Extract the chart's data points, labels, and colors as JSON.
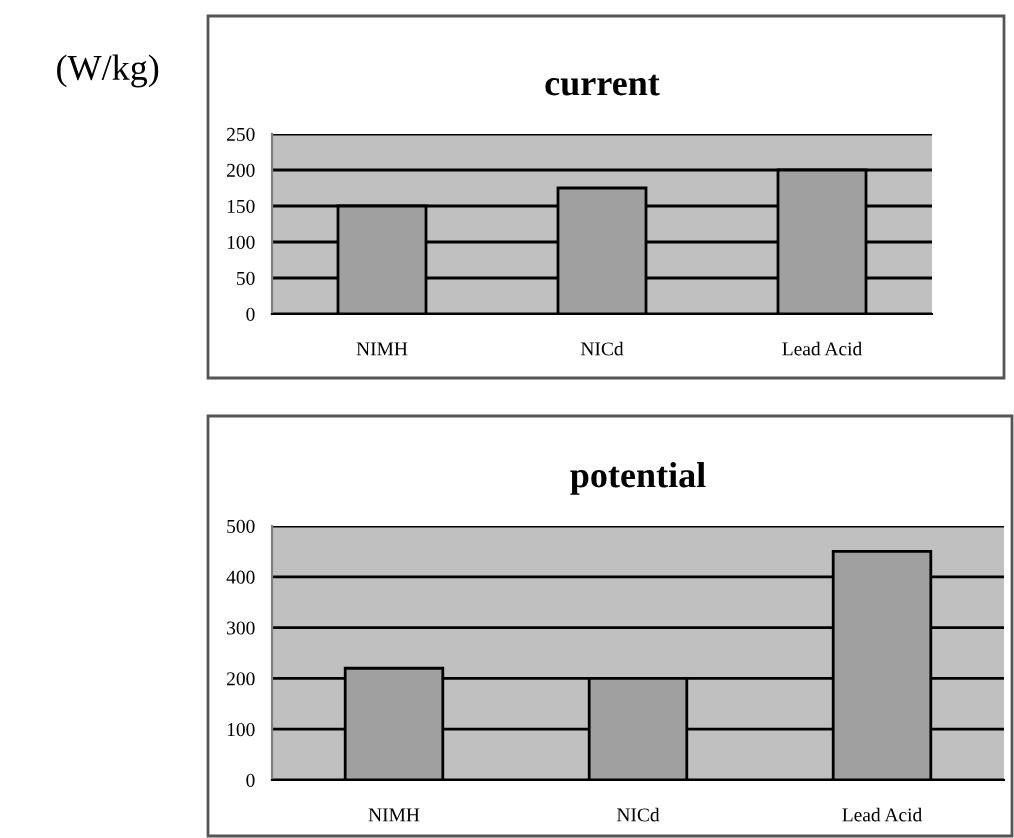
{
  "chart_data": [
    {
      "type": "bar",
      "title": "current",
      "ylabel": "(W/kg)",
      "categories": [
        "NIMH",
        "NICd",
        "Lead Acid"
      ],
      "values": [
        150,
        175,
        200
      ],
      "color": "#a0a0a0",
      "ylim": [
        0,
        250
      ],
      "yticks": [
        0,
        50,
        100,
        150,
        200,
        250
      ],
      "grid": "y"
    },
    {
      "type": "bar",
      "title": "potential",
      "categories": [
        "NIMH",
        "NICd",
        "Lead Acid"
      ],
      "values": [
        220,
        200,
        450
      ],
      "color": "#a0a0a0",
      "ylim": [
        0,
        500
      ],
      "yticks": [
        0,
        100,
        200,
        300,
        400,
        500
      ],
      "grid": "y"
    }
  ]
}
